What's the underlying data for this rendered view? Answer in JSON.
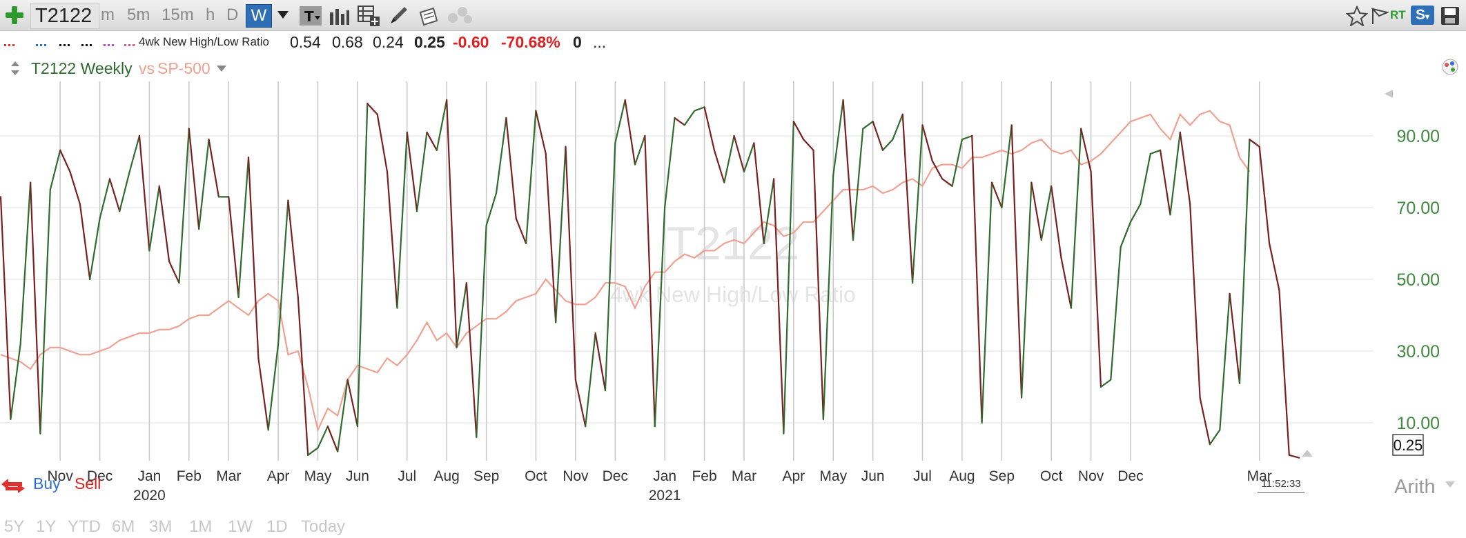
{
  "toolbar": {
    "symbol": "T2122",
    "timeframes": [
      "m",
      "5m",
      "15m",
      "h",
      "D",
      "W"
    ],
    "active_timeframe": "W",
    "rt_label": "RT",
    "s_label": "S"
  },
  "infobar": {
    "indicator_name": "4wk New High/Low Ratio",
    "values": [
      "0.54",
      "0.68",
      "0.24",
      "0.25",
      "-0.60",
      "-70.68%",
      "0"
    ],
    "ellipsis": "..."
  },
  "chart_header": {
    "title": "T2122 Weekly",
    "vs_label": "vs",
    "compare": "SP-500"
  },
  "watermark": {
    "symbol": "T2122",
    "name": "4wk New High/Low Ratio"
  },
  "buy_label": "Buy",
  "sell_label": "Sell",
  "scale_label": "Arith",
  "time_label": "11:52:33",
  "range_buttons": [
    "5Y",
    "1Y",
    "YTD",
    "6M",
    "3M",
    "1M",
    "1W",
    "1D",
    "Today"
  ],
  "colors": {
    "up_line": "#2f6b2f",
    "down_line": "#7a1f1f",
    "compare_line": "#f0a090",
    "axis_text": "#3f8a3f",
    "grid": "#c8c8c8"
  },
  "chart_data": {
    "type": "line",
    "ylim": [
      0,
      100
    ],
    "yticks": [
      10,
      30,
      50,
      70,
      90
    ],
    "ytick_labels": [
      "10.00",
      "30.00",
      "50.00",
      "70.00",
      "90.00"
    ],
    "last_value_label": "0.25",
    "month_ticks": [
      {
        "label": "Nov",
        "week": 6
      },
      {
        "label": "Dec",
        "week": 10
      },
      {
        "label": "Jan",
        "week": 15
      },
      {
        "label": "Feb",
        "week": 19
      },
      {
        "label": "Mar",
        "week": 23
      },
      {
        "label": "Apr",
        "week": 28
      },
      {
        "label": "May",
        "week": 32
      },
      {
        "label": "Jun",
        "week": 36
      },
      {
        "label": "Jul",
        "week": 41
      },
      {
        "label": "Aug",
        "week": 45
      },
      {
        "label": "Sep",
        "week": 49
      },
      {
        "label": "Oct",
        "week": 54
      },
      {
        "label": "Nov",
        "week": 58
      },
      {
        "label": "Dec",
        "week": 62
      },
      {
        "label": "Jan",
        "week": 67
      },
      {
        "label": "Feb",
        "week": 71
      },
      {
        "label": "Mar",
        "week": 75
      },
      {
        "label": "Apr",
        "week": 80
      },
      {
        "label": "May",
        "week": 84
      },
      {
        "label": "Jun",
        "week": 88
      },
      {
        "label": "Jul",
        "week": 93
      },
      {
        "label": "Aug",
        "week": 97
      },
      {
        "label": "Sep",
        "week": 101
      },
      {
        "label": "Oct",
        "week": 106
      },
      {
        "label": "Nov",
        "week": 110
      },
      {
        "label": "Dec",
        "week": 114
      },
      {
        "label": "Mar",
        "week": 127
      }
    ],
    "year_ticks": [
      {
        "label": "2020",
        "week": 15
      },
      {
        "label": "2021",
        "week": 67
      }
    ],
    "series": [
      {
        "values": [
          73,
          11,
          32,
          77,
          7,
          75,
          86,
          80,
          71,
          50,
          67,
          78,
          69,
          80,
          90,
          58,
          76,
          55,
          49,
          92,
          64,
          89,
          73,
          73,
          45,
          84,
          28,
          8,
          32,
          72,
          45,
          1,
          3,
          9,
          2,
          22,
          9,
          99,
          96,
          80,
          42,
          91,
          69,
          91,
          86,
          100,
          31,
          49,
          6,
          65,
          74,
          95,
          67,
          60,
          97,
          85,
          38,
          87,
          22,
          9,
          35,
          19,
          88,
          100,
          82,
          90,
          9,
          70,
          95,
          93,
          97,
          98,
          86,
          77,
          90,
          80,
          88,
          60,
          78,
          7,
          94,
          89,
          86,
          11,
          79,
          100,
          61,
          92,
          94,
          86,
          89,
          96,
          49,
          93,
          83,
          78,
          76,
          89,
          90,
          10,
          77,
          70,
          93,
          17,
          77,
          61,
          76,
          56,
          42,
          92,
          80,
          20,
          22,
          59,
          66,
          71,
          85,
          86,
          68,
          91,
          71,
          17,
          4,
          8,
          46,
          21,
          89,
          87,
          60,
          47,
          1,
          0.25
        ]
      },
      {
        "name": "SP-500",
        "values": [
          29,
          28,
          27,
          25,
          29,
          31,
          31,
          30,
          29,
          29,
          30,
          31,
          33,
          34,
          35,
          35,
          36,
          36,
          37,
          39,
          40,
          40,
          42,
          44,
          42,
          40,
          44,
          46,
          44,
          29,
          30,
          20,
          8,
          14,
          12,
          22,
          26,
          25,
          24,
          28,
          26,
          29,
          33,
          38,
          33,
          35,
          31,
          35,
          37,
          39,
          39,
          41,
          44,
          45,
          46,
          50,
          47,
          44,
          43,
          43,
          45,
          49,
          49,
          48,
          42,
          48,
          52,
          52,
          55,
          57,
          56,
          58,
          58,
          60,
          61,
          60,
          63,
          66,
          65,
          62,
          63,
          66,
          66,
          69,
          72,
          75,
          75,
          75,
          76,
          74,
          75,
          77,
          78,
          76,
          81,
          82,
          82,
          81,
          84,
          84,
          85,
          86,
          85,
          86,
          88,
          89,
          86,
          85,
          86,
          82,
          83,
          85,
          88,
          91,
          94,
          95,
          96,
          92,
          89,
          96,
          93,
          96,
          97,
          94,
          93,
          84,
          80
        ]
      }
    ]
  }
}
